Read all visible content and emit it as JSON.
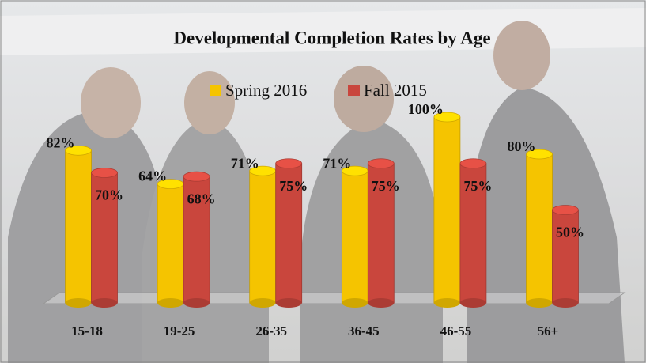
{
  "chart_data": {
    "type": "bar",
    "title": "Developmental Completion Rates by Age",
    "categories": [
      "15-18",
      "19-25",
      "26-35",
      "36-45",
      "46-55",
      "56+"
    ],
    "series": [
      {
        "name": "Spring 2016",
        "color": "#f5c400",
        "values": [
          82,
          64,
          71,
          71,
          100,
          80
        ],
        "value_labels": [
          "82%",
          "64%",
          "71%",
          "71%",
          "100%",
          "80%"
        ]
      },
      {
        "name": "Fall 2015",
        "color": "#c9463d",
        "values": [
          70,
          68,
          75,
          75,
          75,
          50
        ],
        "value_labels": [
          "70%",
          "68%",
          "75%",
          "75%",
          "75%",
          "50%"
        ]
      }
    ]
  }
}
